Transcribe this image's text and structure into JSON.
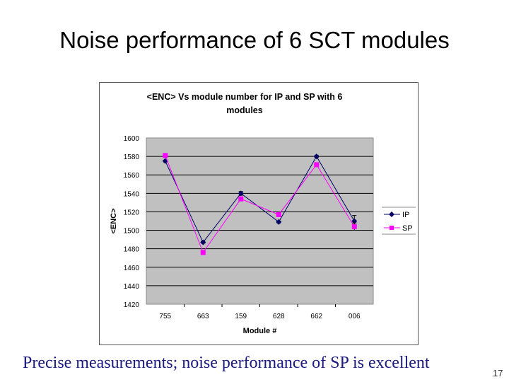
{
  "slide": {
    "title": "Noise performance of 6 SCT modules",
    "caption": "Precise measurements; noise performance of SP is excellent",
    "page_number": "17"
  },
  "chart_data": {
    "type": "line",
    "title": "<ENC> Vs module number for IP and SP with 6 modules",
    "xlabel": "Module #",
    "ylabel": "<ENC>",
    "categories": [
      "755",
      "663",
      "159",
      "628",
      "662",
      "006"
    ],
    "ylim": [
      1420,
      1600
    ],
    "yticks": [
      1420,
      1440,
      1460,
      1480,
      1500,
      1520,
      1540,
      1560,
      1580,
      1600
    ],
    "grid": true,
    "legend": "right",
    "series": [
      {
        "name": "IP",
        "color": "#000066",
        "marker": "diamond",
        "values": [
          1575,
          1487,
          1540,
          1509,
          1580,
          1510
        ],
        "errors": [
          1,
          1,
          2,
          1,
          1,
          6
        ]
      },
      {
        "name": "SP",
        "color": "#ff00ff",
        "marker": "square",
        "values": [
          1581,
          1476,
          1534,
          1517,
          1571,
          1504
        ],
        "errors": [
          2,
          1,
          2,
          1,
          1,
          4
        ]
      }
    ]
  }
}
